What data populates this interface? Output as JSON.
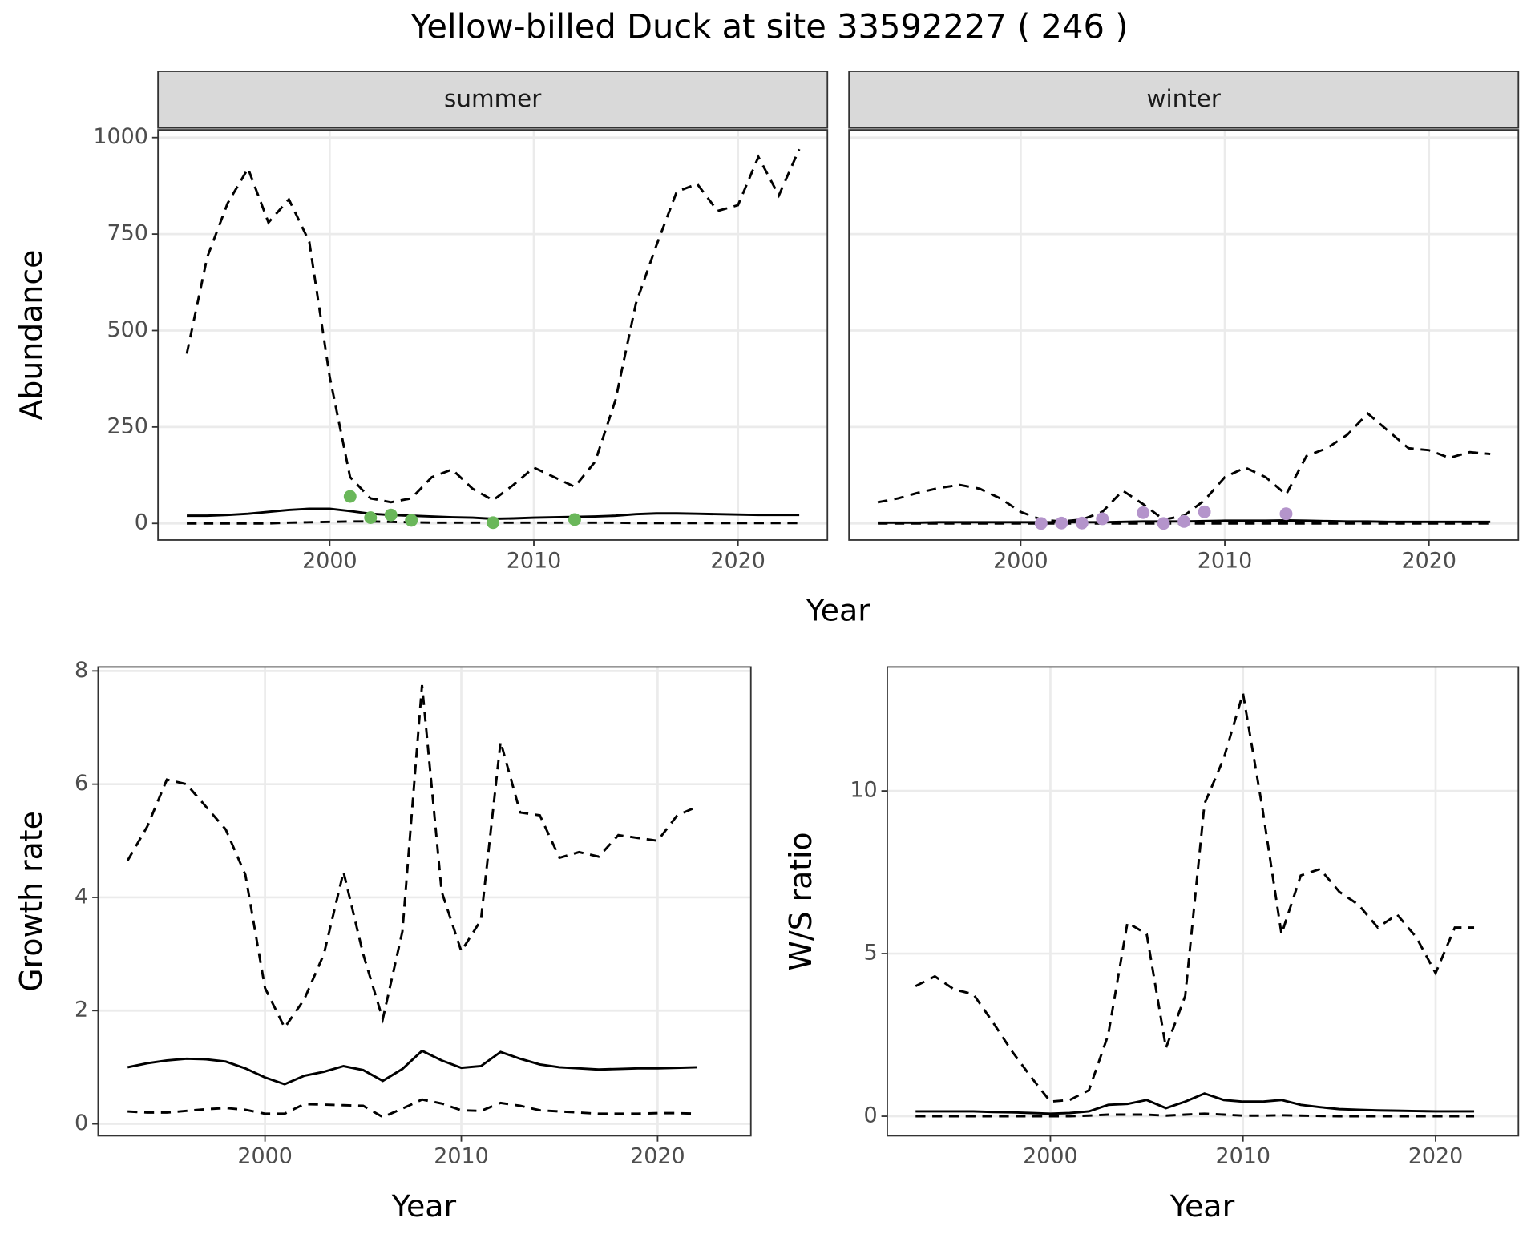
{
  "title": "Yellow-billed Duck at site 33592227 ( 246 )",
  "chart_data": [
    {
      "type": "line",
      "facet": "summer",
      "y_label": "Abundance",
      "x_label": "Year",
      "x": [
        1993,
        1994,
        1995,
        1996,
        1997,
        1998,
        1999,
        2000,
        2001,
        2002,
        2003,
        2004,
        2005,
        2006,
        2007,
        2008,
        2009,
        2010,
        2011,
        2012,
        2013,
        2014,
        2015,
        2016,
        2017,
        2018,
        2019,
        2020,
        2021,
        2022,
        2023
      ],
      "xlim": [
        1991.59,
        2024.38
      ],
      "xticks": [
        2000,
        2010,
        2020
      ],
      "ylim": [
        -43,
        1020
      ],
      "yticks": [
        0,
        250,
        500,
        750,
        1000
      ],
      "ytick_labels": true,
      "grid": true,
      "series": [
        {
          "style": "dashed",
          "color": "#000000",
          "values": [
            440,
            690,
            830,
            920,
            780,
            840,
            730,
            380,
            120,
            65,
            55,
            65,
            120,
            140,
            90,
            60,
            100,
            145,
            120,
            95,
            160,
            320,
            570,
            720,
            860,
            880,
            810,
            825,
            950,
            850,
            970
          ]
        },
        {
          "style": "solid",
          "color": "#000000",
          "values": [
            20,
            20,
            22,
            25,
            30,
            35,
            38,
            38,
            32,
            25,
            22,
            20,
            18,
            16,
            15,
            12,
            13,
            15,
            16,
            17,
            18,
            20,
            24,
            26,
            26,
            25,
            24,
            23,
            22,
            22,
            22
          ]
        },
        {
          "style": "dashed",
          "color": "#000000",
          "values": [
            0,
            0,
            0,
            0,
            0,
            2,
            3,
            4,
            5,
            5,
            4,
            3,
            2,
            2,
            2,
            2,
            2,
            2,
            2,
            2,
            2,
            2,
            1,
            1,
            1,
            1,
            1,
            1,
            1,
            1,
            1
          ]
        },
        {
          "style": "points",
          "color": "#6ab75a",
          "x": [
            2001,
            2002,
            2003,
            2004,
            2008,
            2012
          ],
          "values": [
            70,
            15,
            22,
            8,
            2,
            10
          ]
        }
      ]
    },
    {
      "type": "line",
      "facet": "winter",
      "x": [
        1993,
        1994,
        1995,
        1996,
        1997,
        1998,
        1999,
        2000,
        2001,
        2002,
        2003,
        2004,
        2005,
        2006,
        2007,
        2008,
        2009,
        2010,
        2011,
        2012,
        2013,
        2014,
        2015,
        2016,
        2017,
        2018,
        2019,
        2020,
        2021,
        2022,
        2023
      ],
      "xlim": [
        1991.59,
        2024.38
      ],
      "xticks": [
        2000,
        2010,
        2020
      ],
      "ylim": [
        -43,
        1020
      ],
      "yticks": [
        0,
        250,
        500,
        750,
        1000
      ],
      "ytick_labels": false,
      "grid": true,
      "series": [
        {
          "style": "dashed",
          "color": "#000000",
          "values": [
            55,
            65,
            80,
            92,
            100,
            90,
            65,
            30,
            10,
            5,
            10,
            30,
            85,
            50,
            10,
            20,
            60,
            120,
            145,
            120,
            75,
            175,
            195,
            230,
            285,
            240,
            195,
            190,
            170,
            185,
            180
          ]
        },
        {
          "style": "solid",
          "color": "#000000",
          "values": [
            2,
            2,
            2,
            3,
            3,
            3,
            3,
            3,
            3,
            3,
            3,
            3,
            4,
            5,
            5,
            5,
            6,
            7,
            7,
            7,
            8,
            7,
            6,
            5,
            5,
            4,
            4,
            4,
            4,
            4,
            4
          ]
        },
        {
          "style": "dashed",
          "color": "#000000",
          "values": [
            0,
            0,
            0,
            0,
            0,
            0,
            0,
            0,
            0,
            0,
            0,
            0,
            0,
            0,
            0,
            0,
            0,
            0,
            0,
            0,
            0,
            0,
            0,
            0,
            0,
            0,
            0,
            0,
            0,
            0,
            0
          ]
        },
        {
          "style": "points",
          "color": "#b494cb",
          "x": [
            2001,
            2002,
            2003,
            2004,
            2006,
            2007,
            2008,
            2009,
            2013
          ],
          "values": [
            0,
            1,
            1,
            12,
            28,
            0,
            5,
            30,
            25
          ]
        }
      ]
    },
    {
      "type": "line",
      "y_label": "Growth rate",
      "x_label": "Year",
      "x": [
        1993,
        1994,
        1995,
        1996,
        1997,
        1998,
        1999,
        2000,
        2001,
        2002,
        2003,
        2004,
        2005,
        2006,
        2007,
        2008,
        2009,
        2010,
        2011,
        2012,
        2013,
        2014,
        2015,
        2016,
        2017,
        2018,
        2019,
        2020,
        2021,
        2022
      ],
      "xlim": [
        1991.5,
        2024.75
      ],
      "xticks": [
        2000,
        2010,
        2020
      ],
      "ylim": [
        -0.21,
        8.07
      ],
      "yticks": [
        0,
        2,
        4,
        6,
        8
      ],
      "ytick_labels": true,
      "grid": true,
      "series": [
        {
          "style": "dashed",
          "color": "#000000",
          "values": [
            4.65,
            5.25,
            6.08,
            6.0,
            5.6,
            5.2,
            4.4,
            2.4,
            1.7,
            2.2,
            3.0,
            4.45,
            3.0,
            1.85,
            3.4,
            7.75,
            4.1,
            3.05,
            3.6,
            6.75,
            5.5,
            5.45,
            4.7,
            4.8,
            4.72,
            5.1,
            5.05,
            5.0,
            5.45,
            5.6
          ]
        },
        {
          "style": "solid",
          "color": "#000000",
          "values": [
            1.0,
            1.07,
            1.12,
            1.15,
            1.14,
            1.1,
            0.98,
            0.82,
            0.7,
            0.85,
            0.92,
            1.02,
            0.95,
            0.76,
            0.97,
            1.29,
            1.12,
            0.99,
            1.02,
            1.27,
            1.15,
            1.05,
            1.0,
            0.98,
            0.96,
            0.97,
            0.98,
            0.98,
            0.99,
            1.0
          ]
        },
        {
          "style": "dashed",
          "color": "#000000",
          "values": [
            0.22,
            0.2,
            0.2,
            0.23,
            0.26,
            0.28,
            0.25,
            0.18,
            0.18,
            0.35,
            0.34,
            0.33,
            0.32,
            0.12,
            0.27,
            0.43,
            0.36,
            0.24,
            0.23,
            0.37,
            0.32,
            0.24,
            0.22,
            0.2,
            0.18,
            0.18,
            0.18,
            0.19,
            0.19,
            0.18
          ]
        }
      ]
    },
    {
      "type": "line",
      "y_label": "W/S ratio",
      "x_label": "Year",
      "x": [
        1993,
        1994,
        1995,
        1996,
        1997,
        1998,
        1999,
        2000,
        2001,
        2002,
        2003,
        2004,
        2005,
        2006,
        2007,
        2008,
        2009,
        2010,
        2011,
        2012,
        2013,
        2014,
        2015,
        2016,
        2017,
        2018,
        2019,
        2020,
        2021,
        2022
      ],
      "xlim": [
        1991.53,
        2024.3
      ],
      "xticks": [
        2000,
        2010,
        2020
      ],
      "ylim": [
        -0.6,
        13.81
      ],
      "yticks": [
        0,
        5,
        10
      ],
      "ytick_labels": true,
      "grid": true,
      "series": [
        {
          "style": "dashed",
          "color": "#000000",
          "values": [
            4.0,
            4.3,
            3.9,
            3.75,
            2.9,
            2.0,
            1.2,
            0.45,
            0.5,
            0.8,
            2.5,
            5.95,
            5.6,
            2.1,
            3.7,
            9.6,
            11.0,
            13.0,
            9.5,
            5.6,
            7.4,
            7.6,
            6.9,
            6.5,
            5.8,
            6.2,
            5.5,
            4.4,
            5.8,
            5.8
          ]
        },
        {
          "style": "solid",
          "color": "#000000",
          "values": [
            0.15,
            0.15,
            0.15,
            0.15,
            0.13,
            0.12,
            0.1,
            0.08,
            0.1,
            0.15,
            0.35,
            0.38,
            0.5,
            0.25,
            0.45,
            0.7,
            0.5,
            0.45,
            0.45,
            0.5,
            0.35,
            0.28,
            0.22,
            0.2,
            0.18,
            0.17,
            0.16,
            0.15,
            0.15,
            0.15
          ]
        },
        {
          "style": "dashed",
          "color": "#000000",
          "values": [
            0,
            0,
            0,
            0,
            0,
            0,
            0,
            0,
            0,
            0.02,
            0.05,
            0.05,
            0.05,
            0.02,
            0.05,
            0.08,
            0.05,
            0.02,
            0.02,
            0.03,
            0.02,
            0.01,
            0,
            0,
            0,
            0,
            0,
            0,
            0,
            0
          ]
        }
      ]
    }
  ]
}
